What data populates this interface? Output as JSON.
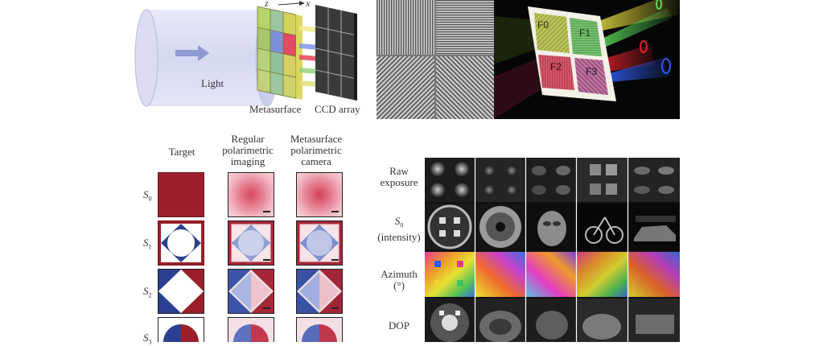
{
  "panel_a": {
    "light_label": "Light",
    "metasurface_label": "Metasurface",
    "ccd_label": "CCD array",
    "axis_z_label": "z",
    "axis_x_label": "x"
  },
  "panel_b": {
    "filters": [
      "F0",
      "F1",
      "F2",
      "F3"
    ]
  },
  "panel_c": {
    "columns": [
      "Target",
      "Regular polarimetric imaging",
      "Metasurface polarimetric camera"
    ],
    "column_lines": [
      [
        "Target"
      ],
      [
        "Regular",
        "polarimetric",
        "imaging"
      ],
      [
        "Metasurface",
        "polarimetric",
        "camera"
      ]
    ],
    "rows": [
      {
        "symbol": "S",
        "sub": "0"
      },
      {
        "symbol": "S",
        "sub": "1"
      },
      {
        "symbol": "S",
        "sub": "2"
      },
      {
        "symbol": "S",
        "sub": "3"
      }
    ]
  },
  "panel_d": {
    "rows": [
      {
        "lines": [
          "Raw",
          "exposure"
        ]
      },
      {
        "symbol": "S",
        "sub": "0",
        "lines": [
          "(intensity)"
        ]
      },
      {
        "lines": [
          "Azimuth",
          "(°)"
        ]
      },
      {
        "lines": [
          "DOP"
        ]
      }
    ]
  },
  "colors": {
    "deep_red": "#9a1f2b",
    "navy": "#2a3f8f",
    "cylinder": "#cfd3f0",
    "dark_bg": "#0b0b0b"
  }
}
